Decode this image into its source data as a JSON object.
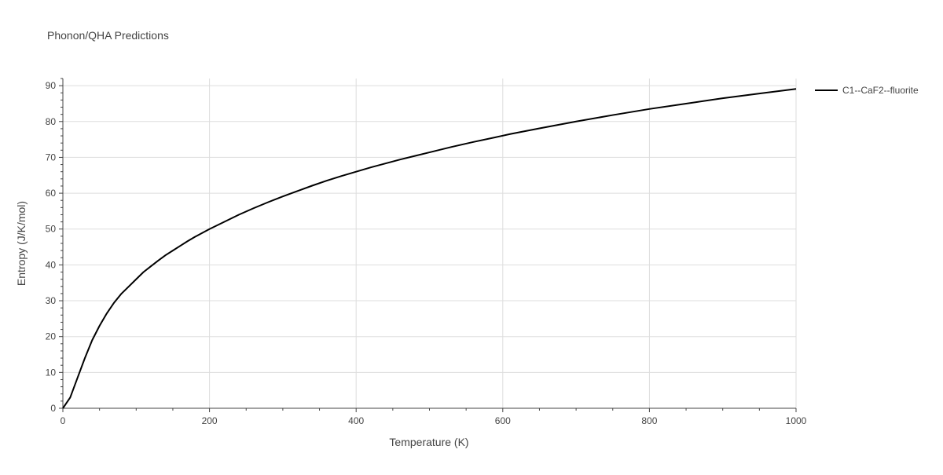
{
  "chart_data": {
    "type": "line",
    "title": "Phonon/QHA Predictions",
    "xlabel": "Temperature (K)",
    "ylabel": "Entropy (J/K/mol)",
    "xlim": [
      0,
      1000
    ],
    "ylim": [
      0,
      92
    ],
    "x_ticks": [
      0,
      200,
      400,
      600,
      800,
      1000
    ],
    "y_ticks": [
      0,
      10,
      20,
      30,
      40,
      50,
      60,
      70,
      80,
      90
    ],
    "grid": true,
    "legend_position": "top-right",
    "series": [
      {
        "name": "C1--CaF2--fluorite",
        "color": "#000000",
        "x": [
          0,
          10,
          20,
          30,
          40,
          50,
          60,
          70,
          80,
          90,
          100,
          110,
          120,
          130,
          140,
          150,
          160,
          170,
          180,
          190,
          200,
          220,
          240,
          260,
          280,
          300,
          320,
          340,
          360,
          380,
          400,
          420,
          440,
          460,
          480,
          500,
          530,
          560,
          590,
          610,
          650,
          700,
          750,
          800,
          850,
          900,
          950,
          1000
        ],
        "y": [
          0,
          3,
          8.5,
          14,
          19,
          23,
          26.5,
          29.5,
          32,
          34,
          36,
          38,
          39.6,
          41.2,
          42.7,
          44,
          45.3,
          46.6,
          47.8,
          48.9,
          50,
          52,
          54,
          55.8,
          57.5,
          59.1,
          60.6,
          62.1,
          63.5,
          64.8,
          66,
          67.2,
          68.3,
          69.4,
          70.4,
          71.4,
          72.9,
          74.3,
          75.6,
          76.5,
          78.1,
          80,
          81.8,
          83.5,
          85,
          86.5,
          87.8,
          89.1
        ]
      }
    ]
  }
}
